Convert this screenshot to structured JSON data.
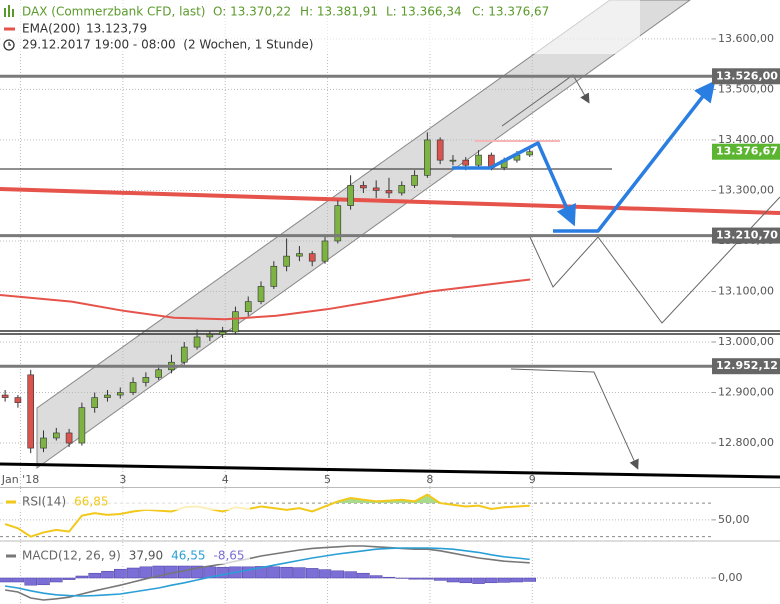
{
  "chart_data": [
    {
      "type": "candlestick",
      "title": "DAX (Commerzbank CFD, last)",
      "ohlc_labels": [
        "O: 13.370,22",
        "H: 13.381,91",
        "L: 13.366,34",
        "C: 13.376,67"
      ],
      "subtitle": "29.12.2017 19:00 - 08:00  (2 Wochen, 1 Stunde)",
      "xlim": [
        -0.2,
        7.42
      ],
      "ylim": [
        12713,
        13677
      ],
      "xticks": [
        {
          "value": 0,
          "label": "Jan '18"
        },
        {
          "value": 1,
          "label": "3"
        },
        {
          "value": 2,
          "label": "4"
        },
        {
          "value": 3,
          "label": "5"
        },
        {
          "value": 4,
          "label": "8"
        },
        {
          "value": 5,
          "label": "9"
        }
      ],
      "yticks": [
        {
          "value": 13600,
          "label": "13.600,00"
        },
        {
          "value": 13500,
          "label": "13.500,00"
        },
        {
          "value": 13400,
          "label": "13.400,00"
        },
        {
          "value": 13300,
          "label": "13.300,00"
        },
        {
          "value": 13200,
          "label": "13.200,00"
        },
        {
          "value": 13100,
          "label": "13.100,00"
        },
        {
          "value": 13000,
          "label": "13.000,00"
        },
        {
          "value": 12900,
          "label": "12.900,00"
        },
        {
          "value": 12800,
          "label": "12.800,00"
        }
      ],
      "grid": true,
      "up_color": "#7cb342",
      "down_color": "#d9534f",
      "x": [
        -0.15,
        -0.025,
        0.1,
        0.225,
        0.35,
        0.475,
        0.6,
        0.725,
        0.85,
        0.975,
        1.1,
        1.225,
        1.35,
        1.475,
        1.6,
        1.725,
        1.85,
        1.975,
        2.1,
        2.225,
        2.35,
        2.475,
        2.6,
        2.725,
        2.85,
        2.975,
        3.1,
        3.225,
        3.35,
        3.475,
        3.6,
        3.725,
        3.85,
        3.975,
        4.1,
        4.225,
        4.35,
        4.475,
        4.6,
        4.725,
        4.85,
        4.975
      ],
      "open": [
        12895,
        12890,
        12935,
        12790,
        12810,
        12820,
        12800,
        12870,
        12890,
        12895,
        12900,
        12920,
        12930,
        12945,
        12960,
        12990,
        13010,
        13015,
        13020,
        13060,
        13080,
        13110,
        13150,
        13170,
        13175,
        13160,
        13200,
        13270,
        13310,
        13305,
        13300,
        13295,
        13310,
        13330,
        13400,
        13360,
        13360,
        13350,
        13370,
        13345,
        13360,
        13370.22
      ],
      "high": [
        12905,
        12895,
        12945,
        12825,
        12830,
        12828,
        12880,
        12900,
        12905,
        12910,
        12930,
        12940,
        12955,
        12975,
        13000,
        13025,
        13022,
        13030,
        13070,
        13090,
        13120,
        13160,
        13205,
        13190,
        13180,
        13210,
        13280,
        13330,
        13318,
        13320,
        13325,
        13318,
        13340,
        13415,
        13405,
        13370,
        13366,
        13380,
        13375,
        13365,
        13378,
        13381.91
      ],
      "low": [
        12882,
        12870,
        12780,
        12782,
        12805,
        12792,
        12795,
        12860,
        12882,
        12888,
        12895,
        12912,
        12925,
        12938,
        12955,
        12985,
        13002,
        13008,
        13015,
        13052,
        13075,
        13105,
        13140,
        13160,
        13150,
        13155,
        13195,
        13262,
        13295,
        13285,
        13285,
        13290,
        13305,
        13325,
        13352,
        13350,
        13340,
        13345,
        13340,
        13340,
        13355,
        13366.34
      ],
      "close": [
        12890,
        12880,
        12790,
        12810,
        12820,
        12800,
        12870,
        12890,
        12895,
        12900,
        12920,
        12930,
        12945,
        12960,
        12990,
        13010,
        13015,
        13020,
        13060,
        13080,
        13110,
        13150,
        13170,
        13175,
        13160,
        13200,
        13270,
        13310,
        13305,
        13300,
        13295,
        13310,
        13330,
        13400,
        13360,
        13360,
        13350,
        13370,
        13345,
        13360,
        13370,
        13376.67
      ],
      "series": [
        {
          "name": "EMA(200)",
          "color": "#e5534b",
          "value_label": "13.123,79",
          "x": [
            -0.2,
            0.5,
            1,
            1.5,
            2,
            2.5,
            3,
            3.5,
            4,
            4.5,
            4.98
          ],
          "values": [
            13093,
            13080,
            13062,
            13048,
            13045,
            13052,
            13065,
            13082,
            13100,
            13112,
            13123.79
          ]
        }
      ],
      "levels": [
        {
          "value": 13526,
          "label": "13.526,00"
        },
        {
          "value": 13210.7,
          "label": "13.210,70"
        },
        {
          "value": 12952.12,
          "label": "12.952,12"
        }
      ],
      "last_price": {
        "value": 13376.67,
        "label": "13.376,67",
        "color": "#5cb531"
      }
    },
    {
      "type": "line",
      "legend_title": "RSI(14)",
      "xlim": [
        -0.2,
        7.42
      ],
      "ylim": [
        26,
        88
      ],
      "yticks": [
        {
          "value": 50,
          "label": "50,00"
        }
      ],
      "bands": [
        70,
        30
      ],
      "fill_above": 70,
      "series": [
        {
          "color": "#f2c81a",
          "fill": "#a8dc8c",
          "value_label": "66,85",
          "x": [
            -0.15,
            -0.025,
            0.1,
            0.225,
            0.35,
            0.475,
            0.6,
            0.725,
            0.85,
            0.975,
            1.1,
            1.225,
            1.35,
            1.475,
            1.6,
            1.725,
            1.85,
            1.975,
            2.1,
            2.225,
            2.35,
            2.475,
            2.6,
            2.725,
            2.85,
            2.975,
            3.1,
            3.225,
            3.35,
            3.475,
            3.6,
            3.725,
            3.85,
            3.975,
            4.1,
            4.225,
            4.35,
            4.475,
            4.6,
            4.725,
            4.85,
            4.975
          ],
          "values": [
            45,
            40,
            30,
            35,
            38,
            36,
            55,
            58,
            56,
            57,
            60,
            62,
            61,
            60,
            65,
            66,
            63,
            60,
            65,
            63,
            66,
            64,
            62,
            64,
            60,
            66,
            72,
            76,
            74,
            72,
            73,
            74,
            72,
            80,
            70,
            68,
            66,
            67,
            63,
            65,
            66,
            66.85
          ]
        }
      ]
    },
    {
      "type": "combo",
      "legend_title": "MACD(12, 26, 9)",
      "xlim": [
        -0.2,
        7.42
      ],
      "ylim": [
        -65,
        90
      ],
      "yticks": [
        {
          "value": 0,
          "label": "0,00"
        }
      ],
      "series": [
        {
          "kind": "line",
          "color": "#777777",
          "value_label": "37,90",
          "x": [
            -0.15,
            -0.025,
            0.1,
            0.225,
            0.35,
            0.475,
            0.6,
            0.725,
            0.85,
            0.975,
            1.1,
            1.225,
            1.35,
            1.475,
            1.6,
            1.725,
            1.85,
            1.975,
            2.1,
            2.225,
            2.35,
            2.475,
            2.6,
            2.725,
            2.85,
            2.975,
            3.1,
            3.225,
            3.35,
            3.475,
            3.6,
            3.725,
            3.85,
            3.975,
            4.1,
            4.225,
            4.35,
            4.475,
            4.6,
            4.725,
            4.85,
            4.975
          ],
          "values": [
            -30,
            -35,
            -50,
            -55,
            -52,
            -48,
            -40,
            -32,
            -25,
            -18,
            -10,
            -2,
            5,
            12,
            18,
            25,
            30,
            35,
            42,
            48,
            55,
            60,
            65,
            70,
            74,
            76,
            78,
            80,
            80,
            78,
            76,
            74,
            72,
            72,
            68,
            62,
            56,
            50,
            46,
            42,
            40,
            37.9
          ]
        },
        {
          "kind": "line",
          "color": "#2a9fd6",
          "value_label": "46,55",
          "x": [
            -0.15,
            -0.025,
            0.1,
            0.225,
            0.35,
            0.475,
            0.6,
            0.725,
            0.85,
            0.975,
            1.1,
            1.225,
            1.35,
            1.475,
            1.6,
            1.725,
            1.85,
            1.975,
            2.1,
            2.225,
            2.35,
            2.475,
            2.6,
            2.725,
            2.85,
            2.975,
            3.1,
            3.225,
            3.35,
            3.475,
            3.6,
            3.725,
            3.85,
            3.975,
            4.1,
            4.225,
            4.35,
            4.475,
            4.6,
            4.725,
            4.85,
            4.975
          ],
          "values": [
            -20,
            -25,
            -32,
            -38,
            -42,
            -44,
            -45,
            -44,
            -42,
            -40,
            -35,
            -30,
            -25,
            -18,
            -12,
            -5,
            2,
            8,
            14,
            20,
            26,
            32,
            38,
            44,
            50,
            55,
            60,
            64,
            68,
            72,
            74,
            75,
            75,
            75,
            74,
            72,
            68,
            64,
            58,
            53,
            50,
            46.55
          ]
        },
        {
          "kind": "bar",
          "color": "#7b6fd6",
          "value_label": "-8,65",
          "x": [
            -0.15,
            -0.025,
            0.1,
            0.225,
            0.35,
            0.475,
            0.6,
            0.725,
            0.85,
            0.975,
            1.1,
            1.225,
            1.35,
            1.475,
            1.6,
            1.725,
            1.85,
            1.975,
            2.1,
            2.225,
            2.35,
            2.475,
            2.6,
            2.725,
            2.85,
            2.975,
            3.1,
            3.225,
            3.35,
            3.475,
            3.6,
            3.725,
            3.85,
            3.975,
            4.1,
            4.225,
            4.35,
            4.475,
            4.6,
            4.725,
            4.85,
            4.975
          ],
          "values": [
            -10,
            -10,
            -18,
            -17,
            -10,
            -4,
            5,
            12,
            17,
            22,
            25,
            28,
            30,
            30,
            30,
            30,
            28,
            27,
            28,
            28,
            29,
            28,
            27,
            26,
            24,
            21,
            18,
            16,
            12,
            6,
            2,
            -1,
            -3,
            -3,
            -6,
            -10,
            -12,
            -14,
            -12,
            -11,
            -10,
            -8.65
          ]
        }
      ]
    }
  ]
}
